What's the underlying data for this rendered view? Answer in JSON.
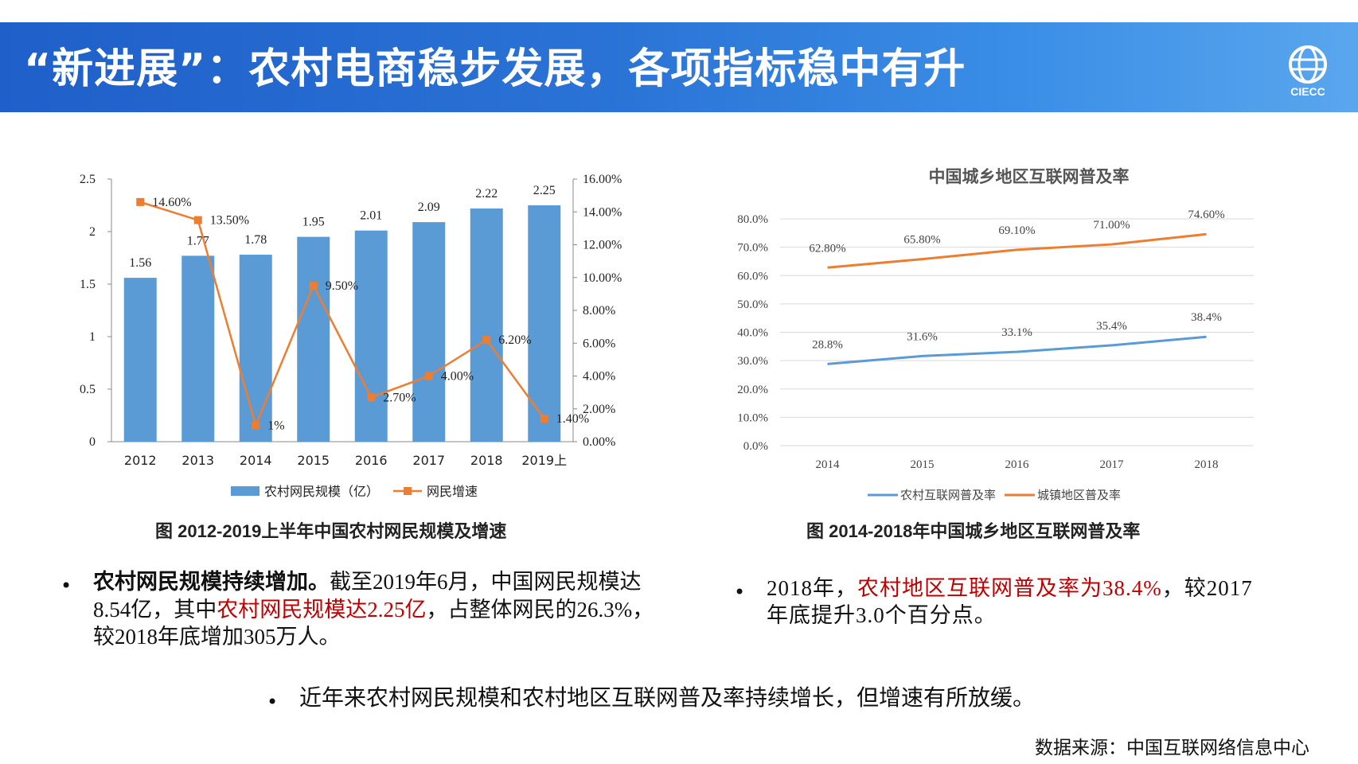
{
  "header": {
    "title": "“新进展”：农村电商稳步发展，各项指标稳中有升",
    "logo_text": "CIECC"
  },
  "colors": {
    "bar": "#5b9bd5",
    "orange": "#ed7d31",
    "blue_line": "#5b9bd5",
    "red_text": "#c00000"
  },
  "chart_data": [
    {
      "type": "bar+line",
      "title": "",
      "categories": [
        "2012",
        "2013",
        "2014",
        "2015",
        "2016",
        "2017",
        "2018",
        "2019上"
      ],
      "series": [
        {
          "name": "农村网民规模（亿）",
          "type": "bar",
          "axis": "left",
          "values": [
            1.56,
            1.77,
            1.78,
            1.95,
            2.01,
            2.09,
            2.22,
            2.25
          ],
          "labels": [
            "1.56",
            "1.77",
            "1.78",
            "1.95",
            "2.01",
            "2.09",
            "2.22",
            "2.25"
          ]
        },
        {
          "name": "网民增速",
          "type": "line",
          "axis": "right",
          "values": [
            14.6,
            13.5,
            1.0,
            9.5,
            2.7,
            4.0,
            6.2,
            1.4
          ],
          "labels": [
            "14.60%",
            "13.50%",
            "1%",
            "9.50%",
            "2.70%",
            "4.00%",
            "6.20%",
            "1.40%"
          ]
        }
      ],
      "ylim_left": [
        0,
        2.5
      ],
      "left_ticks": [
        "0",
        "0.5",
        "1",
        "1.5",
        "2",
        "2.5"
      ],
      "ylim_right": [
        0,
        16
      ],
      "right_ticks": [
        "0.00%",
        "2.00%",
        "4.00%",
        "6.00%",
        "8.00%",
        "10.00%",
        "12.00%",
        "14.00%",
        "16.00%"
      ],
      "legend_position": "bottom",
      "caption": "图  2012-2019上半年中国农村网民规模及增速"
    },
    {
      "type": "line",
      "title": "中国城乡地区互联网普及率",
      "x": [
        "2014",
        "2015",
        "2016",
        "2017",
        "2018"
      ],
      "series": [
        {
          "name": "农村互联网普及率",
          "values": [
            28.8,
            31.6,
            33.1,
            35.4,
            38.4
          ],
          "labels": [
            "28.8%",
            "31.6%",
            "33.1%",
            "35.4%",
            "38.4%"
          ]
        },
        {
          "name": "城镇地区普及率",
          "values": [
            62.8,
            65.8,
            69.1,
            71.0,
            74.6
          ],
          "labels": [
            "62.80%",
            "65.80%",
            "69.10%",
            "71.00%",
            "74.60%"
          ]
        }
      ],
      "ylim": [
        0,
        80
      ],
      "y_ticks": [
        "0.0%",
        "10.0%",
        "20.0%",
        "30.0%",
        "40.0%",
        "50.0%",
        "60.0%",
        "70.0%",
        "80.0%"
      ],
      "grid": true,
      "legend_position": "bottom",
      "caption": "图  2014-2018年中国城乡地区互联网普及率"
    }
  ],
  "text": {
    "left_bold": "农村网民规模持续增加。",
    "left_part1": "截至2019年6月，中国网民规模达8.54亿，其中",
    "left_red": "农村网民规模达2.25亿",
    "left_part2": "，占整体网民的26.3%，较2018年底增加305万人。",
    "right_part1": "2018年，",
    "right_red": "农村地区互联网普及率为38.4%",
    "right_part2": "，较2017年底提升3.0个百分点。",
    "bottom": "近年来农村网民规模和农村地区互联网普及率持续增长，但增速有所放缓。",
    "bullet": "•",
    "source": "数据来源：中国互联网络信息中心"
  }
}
